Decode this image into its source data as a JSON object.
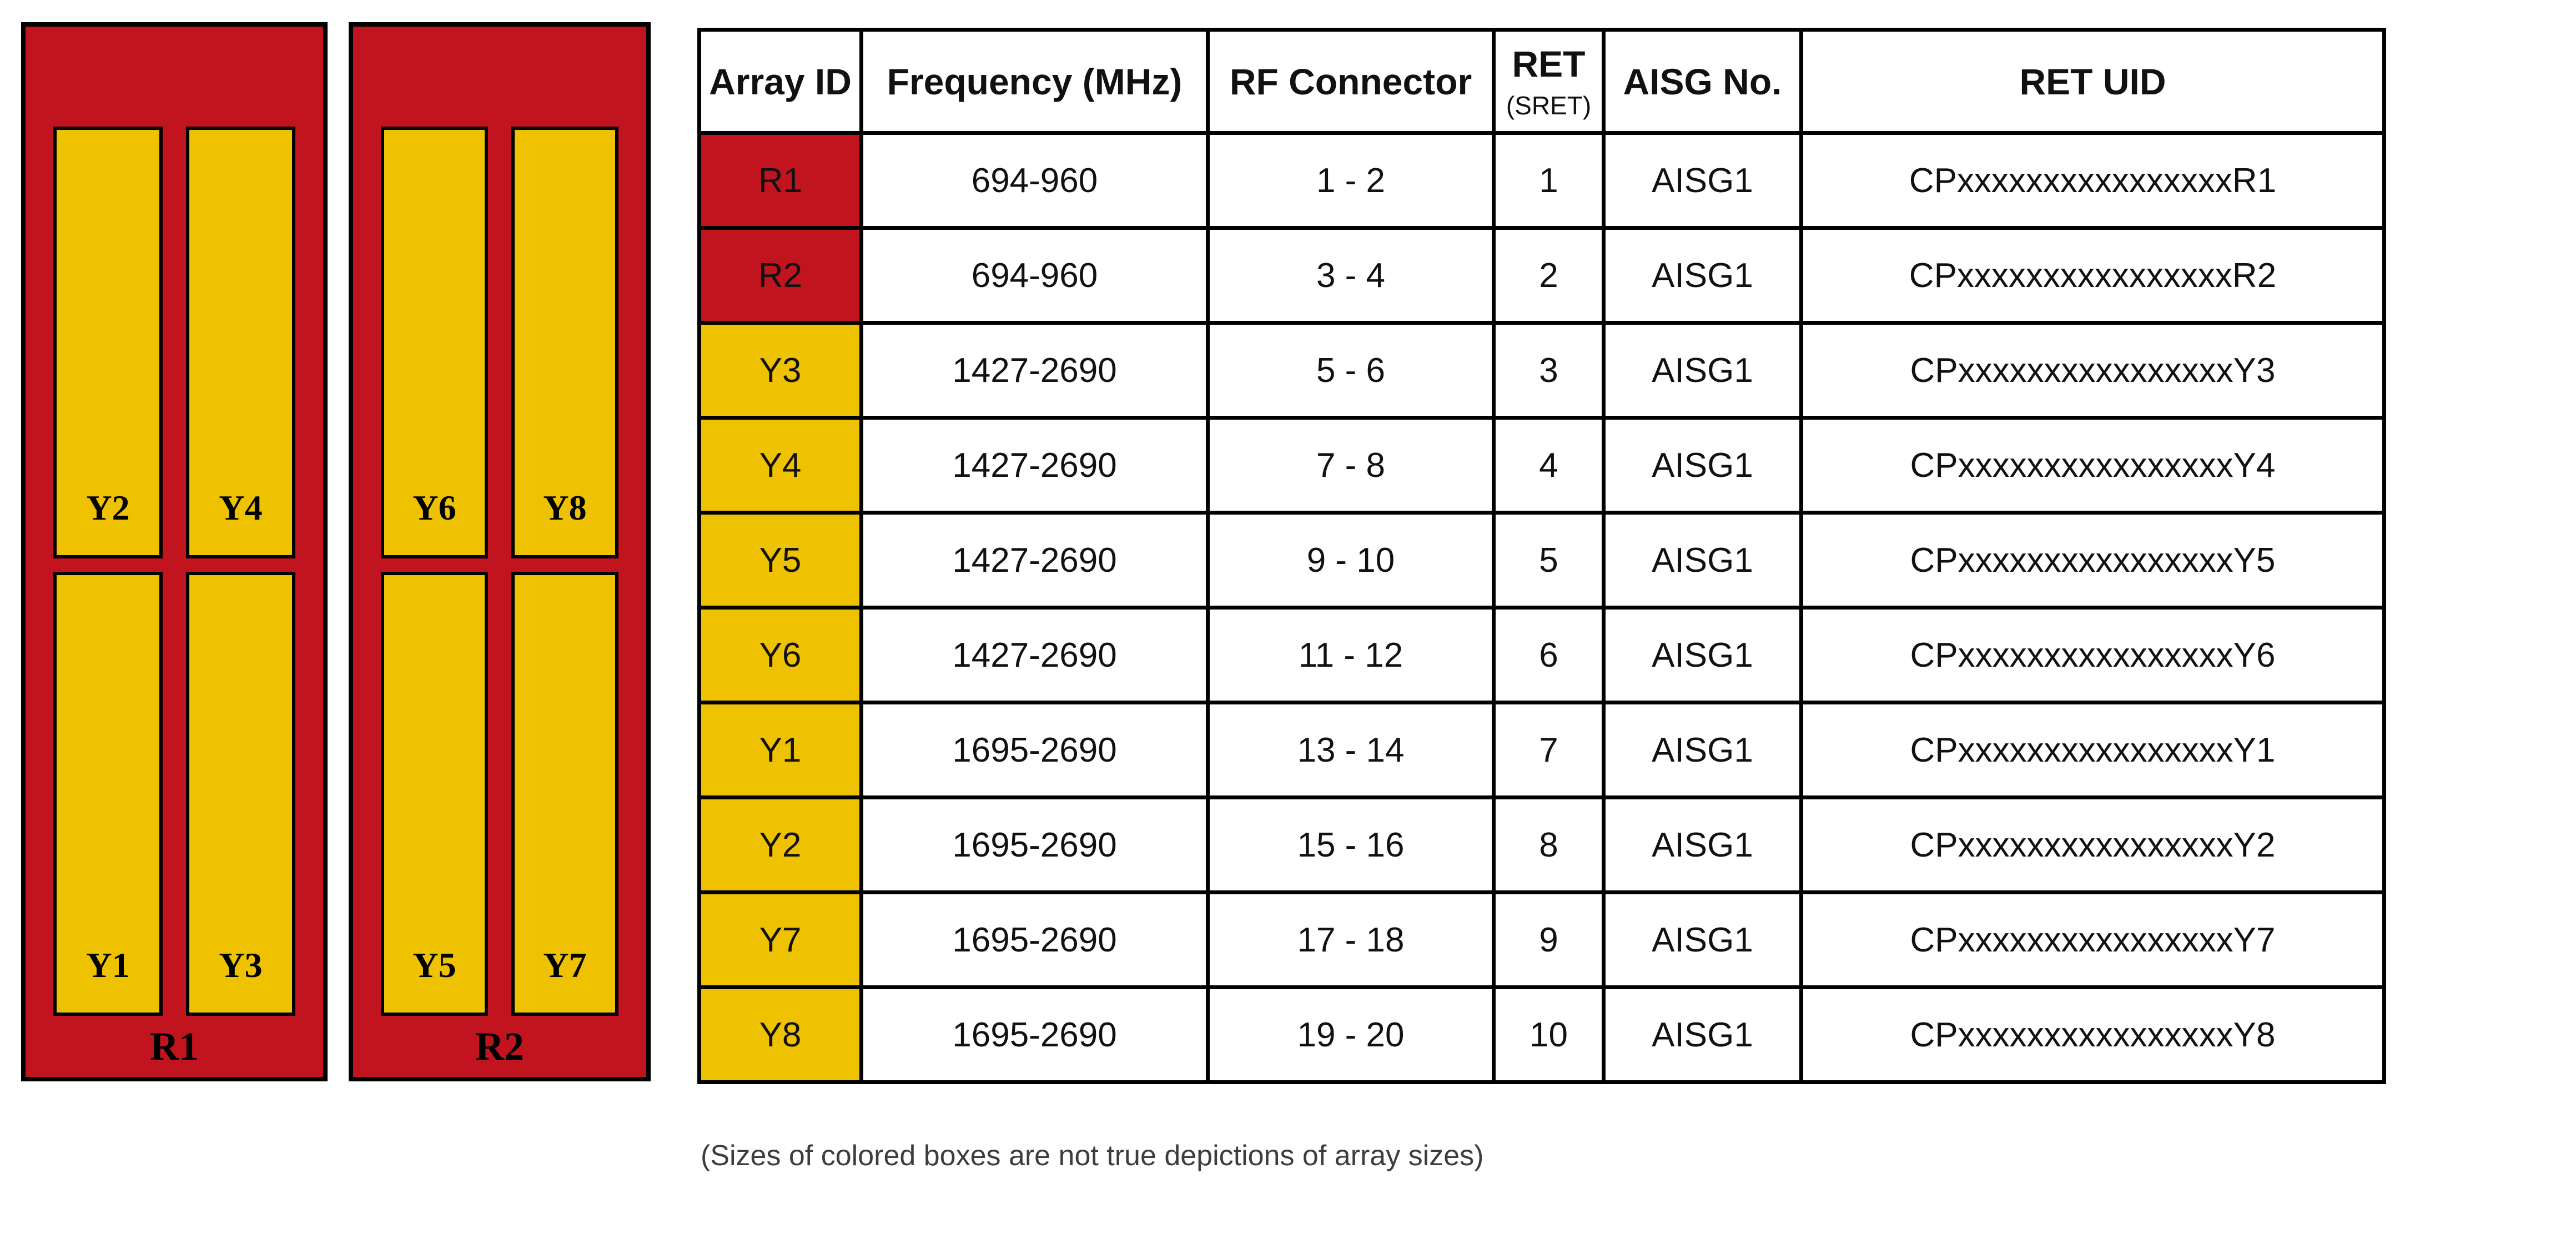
{
  "colors": {
    "panel_red": "#C2141F",
    "array_yellow": "#EEC101",
    "border_black": "#000000"
  },
  "diagram": {
    "panels": [
      {
        "label": "R1",
        "top_arrays": [
          "Y2",
          "Y4"
        ],
        "bottom_arrays": [
          "Y1",
          "Y3"
        ]
      },
      {
        "label": "R2",
        "top_arrays": [
          "Y6",
          "Y8"
        ],
        "bottom_arrays": [
          "Y5",
          "Y7"
        ]
      }
    ]
  },
  "table": {
    "headers": {
      "array_id": "Array ID",
      "frequency": "Frequency (MHz)",
      "rf_connector": "RF Connector",
      "ret": "RET",
      "ret_sub": "(SRET)",
      "aisg": "AISG No.",
      "ret_uid": "RET UID"
    },
    "rows": [
      {
        "array_id": "R1",
        "color": "red",
        "frequency": "694-960",
        "rf_connector": "1 - 2",
        "ret": "1",
        "aisg": "AISG1",
        "ret_uid": "CPxxxxxxxxxxxxxxxxR1"
      },
      {
        "array_id": "R2",
        "color": "red",
        "frequency": "694-960",
        "rf_connector": "3 - 4",
        "ret": "2",
        "aisg": "AISG1",
        "ret_uid": "CPxxxxxxxxxxxxxxxxR2"
      },
      {
        "array_id": "Y3",
        "color": "yellow",
        "frequency": "1427-2690",
        "rf_connector": "5 - 6",
        "ret": "3",
        "aisg": "AISG1",
        "ret_uid": "CPxxxxxxxxxxxxxxxxY3"
      },
      {
        "array_id": "Y4",
        "color": "yellow",
        "frequency": "1427-2690",
        "rf_connector": "7 - 8",
        "ret": "4",
        "aisg": "AISG1",
        "ret_uid": "CPxxxxxxxxxxxxxxxxY4"
      },
      {
        "array_id": "Y5",
        "color": "yellow",
        "frequency": "1427-2690",
        "rf_connector": "9 - 10",
        "ret": "5",
        "aisg": "AISG1",
        "ret_uid": "CPxxxxxxxxxxxxxxxxY5"
      },
      {
        "array_id": "Y6",
        "color": "yellow",
        "frequency": "1427-2690",
        "rf_connector": "11 - 12",
        "ret": "6",
        "aisg": "AISG1",
        "ret_uid": "CPxxxxxxxxxxxxxxxxY6"
      },
      {
        "array_id": "Y1",
        "color": "yellow",
        "frequency": "1695-2690",
        "rf_connector": "13 - 14",
        "ret": "7",
        "aisg": "AISG1",
        "ret_uid": "CPxxxxxxxxxxxxxxxxY1"
      },
      {
        "array_id": "Y2",
        "color": "yellow",
        "frequency": "1695-2690",
        "rf_connector": "15 - 16",
        "ret": "8",
        "aisg": "AISG1",
        "ret_uid": "CPxxxxxxxxxxxxxxxxY2"
      },
      {
        "array_id": "Y7",
        "color": "yellow",
        "frequency": "1695-2690",
        "rf_connector": "17 - 18",
        "ret": "9",
        "aisg": "AISG1",
        "ret_uid": "CPxxxxxxxxxxxxxxxxY7"
      },
      {
        "array_id": "Y8",
        "color": "yellow",
        "frequency": "1695-2690",
        "rf_connector": "19 - 20",
        "ret": "10",
        "aisg": "AISG1",
        "ret_uid": "CPxxxxxxxxxxxxxxxxY8"
      }
    ]
  },
  "footnote": "(Sizes of colored boxes are not true depictions of array sizes)"
}
